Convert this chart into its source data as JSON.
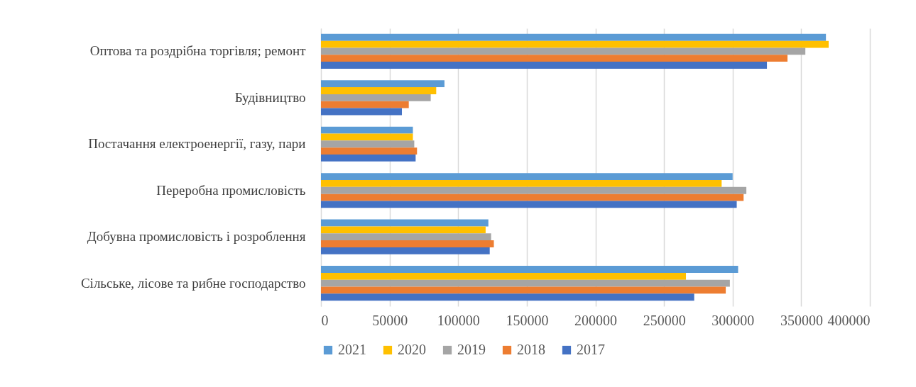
{
  "chart_data": {
    "type": "bar",
    "orientation": "horizontal",
    "categories": [
      "Оптова та роздрібна торгівля; ремонт",
      "Будівництво",
      "Постачання електроенергії, газу, пари",
      "Переробна промисловість",
      "Добувна промисловість і розроблення",
      "Сільське, лісове та рибне  господарство"
    ],
    "series": [
      {
        "name": "2021",
        "color": "#5b9bd5",
        "values": [
          368000,
          90000,
          67000,
          300000,
          122000,
          304000
        ]
      },
      {
        "name": "2020",
        "color": "#ffc000",
        "values": [
          370000,
          84000,
          67000,
          292000,
          120000,
          266000
        ]
      },
      {
        "name": "2019",
        "color": "#a5a5a5",
        "values": [
          353000,
          80000,
          68000,
          310000,
          124000,
          298000
        ]
      },
      {
        "name": "2018",
        "color": "#ed7d31",
        "values": [
          340000,
          64000,
          70000,
          308000,
          126000,
          295000
        ]
      },
      {
        "name": "2017",
        "color": "#4472c4",
        "values": [
          325000,
          59000,
          69000,
          303000,
          123000,
          272000
        ]
      }
    ],
    "xlim": [
      0,
      400000
    ],
    "xticks": [
      0,
      50000,
      100000,
      150000,
      200000,
      250000,
      300000,
      350000,
      400000
    ],
    "grid": "x",
    "legend": "bottom"
  }
}
